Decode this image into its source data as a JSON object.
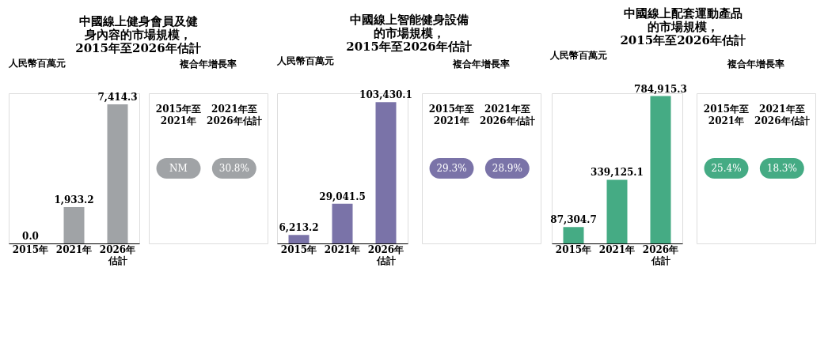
{
  "chart_data": [
    {
      "type": "bar",
      "title": "中國線上健身會員及健身內容的市場規模，2015年至2026年估計",
      "ylabel": "人民幣百萬元",
      "categories": [
        "2015年",
        "2021年",
        "2026年估計"
      ],
      "values": [
        0.0,
        1933.2,
        7414.3
      ],
      "value_labels": [
        "0.0",
        "1,933.2",
        "7,414.3"
      ],
      "color": "#a0a3a6",
      "annotations": [
        "複合年增長率",
        "2015年至\n2021年",
        "2021年至\n2026年估計",
        "NM",
        "30.8%"
      ]
    },
    {
      "type": "bar",
      "title": "中國線上智能健身設備的市場規模，2015年至2026年估計",
      "ylabel": "人民幣百萬元",
      "categories": [
        "2015年",
        "2021年",
        "2026年估計"
      ],
      "values": [
        6213.2,
        29041.5,
        103430.1
      ],
      "value_labels": [
        "6,213.2",
        "29,041.5",
        "103,430.1"
      ],
      "color": "#7a73a8",
      "annotations": [
        "複合年增長率",
        "2015年至\n2021年",
        "2021年至\n2026年估計",
        "29.3%",
        "28.9%"
      ]
    },
    {
      "type": "bar",
      "title": "中國線上配套運動產品的市場規模，2015年至2026年估計",
      "ylabel": "人民幣百萬元",
      "categories": [
        "2015年",
        "2021年",
        "2026年估計"
      ],
      "values": [
        87304.7,
        339125.1,
        784915.3
      ],
      "value_labels": [
        "87,304.7",
        "339,125.1",
        "784,915.3"
      ],
      "color": "#45ab84",
      "annotations": [
        "複合年增長率",
        "2015年至\n2021年",
        "2021年至\n2026年估計",
        "25.4%",
        "18.3%"
      ]
    }
  ]
}
